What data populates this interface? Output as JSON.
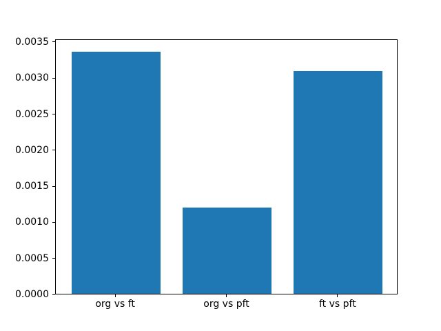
{
  "chart_data": {
    "type": "bar",
    "title": "",
    "xlabel": "",
    "ylabel": "",
    "categories": [
      "org vs ft",
      "org vs pft",
      "ft vs pft"
    ],
    "values": [
      0.00336,
      0.0012,
      0.00309
    ],
    "bar_color": "#1f77b4",
    "bar_width_frac": 0.8,
    "xlim": [
      -0.54,
      2.54
    ],
    "ylim": [
      0,
      0.003538
    ],
    "yticks": [
      0.0,
      0.0005,
      0.001,
      0.0015,
      0.002,
      0.0025,
      0.003,
      0.0035
    ],
    "ytick_labels": [
      "0.0000",
      "0.0005",
      "0.0010",
      "0.0015",
      "0.0020",
      "0.0025",
      "0.0030",
      "0.0035"
    ],
    "grid": false,
    "legend": "none",
    "background": "#ffffff",
    "spine_color": "#000000"
  }
}
